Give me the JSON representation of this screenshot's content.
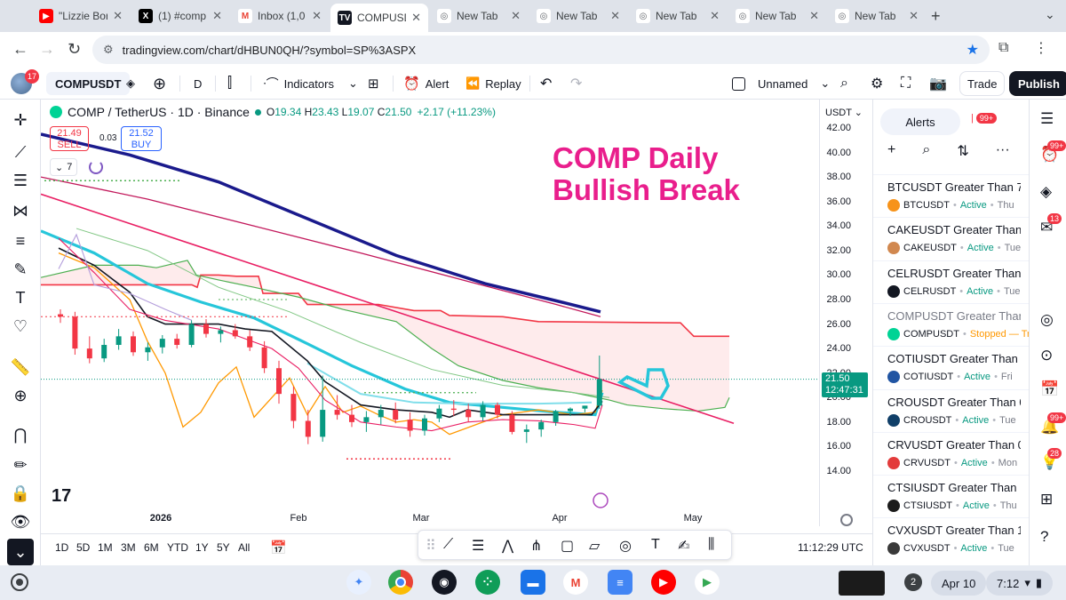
{
  "browser": {
    "tabs": [
      {
        "title": "\"Lizzie Bor",
        "icon": "youtube-icon"
      },
      {
        "title": "(1) #comp",
        "icon": "x-icon"
      },
      {
        "title": "Inbox (1,0",
        "icon": "gmail-icon"
      },
      {
        "title": "COMPUSD",
        "icon": "tradingview-icon",
        "active": true
      },
      {
        "title": "New Tab",
        "icon": "chrome-icon"
      },
      {
        "title": "New Tab",
        "icon": "chrome-icon"
      },
      {
        "title": "New Tab",
        "icon": "chrome-icon"
      },
      {
        "title": "New Tab",
        "icon": "chrome-icon"
      },
      {
        "title": "New Tab",
        "icon": "chrome-icon"
      }
    ],
    "url": "tradingview.com/chart/dHBUN0QH/?symbol=SP%3ASPX"
  },
  "toolbar": {
    "avatar_badge": "17",
    "symbol": "COMPUSDT",
    "interval": "D",
    "indicators": "Indicators",
    "alert": "Alert",
    "replay": "Replay",
    "layout_name": "Unnamed",
    "trade": "Trade",
    "publish": "Publish"
  },
  "legend": {
    "symbol": "COMP / TetherUS · 1D · Binance",
    "open_label": "O",
    "open": "19.34",
    "high_label": "H",
    "high": "23.43",
    "low_label": "L",
    "low": "19.07",
    "close_label": "C",
    "close": "21.50",
    "change": "+2.17 (+11.23%)",
    "sell_price": "21.49",
    "sell_label": "SELL",
    "spread": "0.03",
    "buy_price": "21.52",
    "buy_label": "BUY",
    "indicator_count": "7"
  },
  "annotation": {
    "line1": "COMP Daily",
    "line2": "Bullish Break"
  },
  "price_axis": {
    "currency": "USDT",
    "ticks": [
      "42.00",
      "40.00",
      "38.00",
      "36.00",
      "34.00",
      "32.00",
      "30.00",
      "28.00",
      "26.00",
      "24.00",
      "22.00",
      "20.00",
      "18.00",
      "16.00",
      "14.00"
    ],
    "last_price": "21.50",
    "countdown": "12:47:31"
  },
  "time_axis": {
    "ticks": [
      "2026",
      "Feb",
      "Mar",
      "Apr",
      "May"
    ]
  },
  "bottom": {
    "ranges": [
      "1D",
      "5D",
      "1M",
      "3M",
      "6M",
      "YTD",
      "1Y",
      "5Y",
      "All"
    ],
    "clock": "11:12:29 UTC"
  },
  "alerts": {
    "tab_label": "Alerts",
    "badge": "99+",
    "items": [
      {
        "name": "BTCUSDT Greater Than 7...",
        "symbol": "BTCUSDT",
        "status": "Active",
        "when": "Thu",
        "coin_color": "#f7931a"
      },
      {
        "name": "CAKEUSDT Greater Than ...",
        "symbol": "CAKEUSDT",
        "status": "Active",
        "when": "Tue",
        "coin_color": "#d1884f"
      },
      {
        "name": "CELRUSDT Greater Than ...",
        "symbol": "CELRUSDT",
        "status": "Active",
        "when": "Tue",
        "coin_color": "#131722"
      },
      {
        "name": "COMPUSDT Greater Than...",
        "symbol": "COMPUSDT",
        "status": "Stopped — Tr",
        "when": "",
        "coin_color": "#00d395",
        "stopped": true
      },
      {
        "name": "COTIUSDT Greater Than ...",
        "symbol": "COTIUSDT",
        "status": "Active",
        "when": "Fri",
        "coin_color": "#2155a3"
      },
      {
        "name": "CROUSDT Greater Than 0...",
        "symbol": "CROUSDT",
        "status": "Active",
        "when": "Tue",
        "coin_color": "#103f68"
      },
      {
        "name": "CRVUSDT Greater Than 0...",
        "symbol": "CRVUSDT",
        "status": "Active",
        "when": "Mon",
        "coin_color": "#e33b3b"
      },
      {
        "name": "CTSIUSDT Greater Than ...",
        "symbol": "CTSIUSDT",
        "status": "Active",
        "when": "Thu",
        "coin_color": "#1b1b1b"
      },
      {
        "name": "CVXUSDT Greater Than 1...",
        "symbol": "CVXUSDT",
        "status": "Active",
        "when": "Tue",
        "coin_color": "#3a3a3a"
      }
    ]
  },
  "right_rail": {
    "badges": [
      "99+",
      "13",
      "99+",
      "28"
    ]
  },
  "shelf": {
    "notifications": "2",
    "date": "Apr 10",
    "time": "7:12"
  },
  "chart_data": {
    "type": "line",
    "title": "COMP / TetherUS · 1D · Binance",
    "xlabel": "",
    "ylabel": "",
    "x_ticks": [
      "2026",
      "Feb",
      "Mar",
      "Apr",
      "May"
    ],
    "ylim": [
      14,
      42
    ],
    "series": [
      {
        "values": [
          [
            26.8,
            27.2,
            26.1,
            26.6
          ],
          [
            26.6,
            27.0,
            23.5,
            24.0
          ],
          [
            24.0,
            25.0,
            22.8,
            23.2
          ],
          [
            23.2,
            24.8,
            22.9,
            24.3
          ],
          [
            24.3,
            25.6,
            23.9,
            25.0
          ],
          [
            25.0,
            25.4,
            23.4,
            23.7
          ],
          [
            23.7,
            24.5,
            23.0,
            24.1
          ],
          [
            24.1,
            25.1,
            23.6,
            24.8
          ],
          [
            24.8,
            25.2,
            24.0,
            24.3
          ],
          [
            24.3,
            26.3,
            24.1,
            26.0
          ],
          [
            26.0,
            26.4,
            24.9,
            25.2
          ],
          [
            25.2,
            25.8,
            24.5,
            25.5
          ],
          [
            25.5,
            26.0,
            24.8,
            25.0
          ],
          [
            25.0,
            25.5,
            23.8,
            24.1
          ],
          [
            24.1,
            24.6,
            22.0,
            22.4
          ],
          [
            22.4,
            23.0,
            19.5,
            20.3
          ],
          [
            20.3,
            20.9,
            17.5,
            18.1
          ],
          [
            18.1,
            19.0,
            16.2,
            16.8
          ],
          [
            16.8,
            21.8,
            16.4,
            19.0
          ],
          [
            19.0,
            20.2,
            18.2,
            18.6
          ],
          [
            18.6,
            19.4,
            17.6,
            18.0
          ],
          [
            18.0,
            18.9,
            17.2,
            18.4
          ],
          [
            18.4,
            19.4,
            17.8,
            19.0
          ],
          [
            19.0,
            19.6,
            17.9,
            18.2
          ],
          [
            18.2,
            18.8,
            16.8,
            17.3
          ],
          [
            17.3,
            18.6,
            16.9,
            18.3
          ],
          [
            18.3,
            19.4,
            18.0,
            19.1
          ],
          [
            19.1,
            19.8,
            18.5,
            19.0
          ],
          [
            19.0,
            19.5,
            18.0,
            18.4
          ],
          [
            18.4,
            19.7,
            18.1,
            19.4
          ],
          [
            19.4,
            19.6,
            18.3,
            18.6
          ],
          [
            18.6,
            18.9,
            17.0,
            17.2
          ],
          [
            17.2,
            17.8,
            16.3,
            17.4
          ],
          [
            17.4,
            18.2,
            16.8,
            18.0
          ],
          [
            18.0,
            19.0,
            17.7,
            18.9
          ],
          [
            18.9,
            19.2,
            18.5,
            19.1
          ],
          [
            19.1,
            19.34,
            18.8,
            19.34
          ],
          [
            19.34,
            23.43,
            19.07,
            21.5
          ]
        ]
      },
      {
        "values": [
          32.5,
          31.5,
          30.2,
          29.0,
          27.8,
          26.8,
          25.9,
          25.2,
          24.6,
          24.0,
          23.3,
          22.5,
          21.6,
          20.8,
          20.0,
          19.3,
          18.9,
          18.6,
          18.3,
          18.2,
          18.2
        ]
      },
      {
        "values": [
          33.5,
          32.8,
          31.0,
          29.5,
          27.6,
          26.0,
          25.0,
          24.2,
          23.6,
          23.0,
          22.2,
          21.2,
          20.2,
          19.5,
          19.1,
          18.8,
          18.7,
          18.8
        ]
      }
    ]
  }
}
